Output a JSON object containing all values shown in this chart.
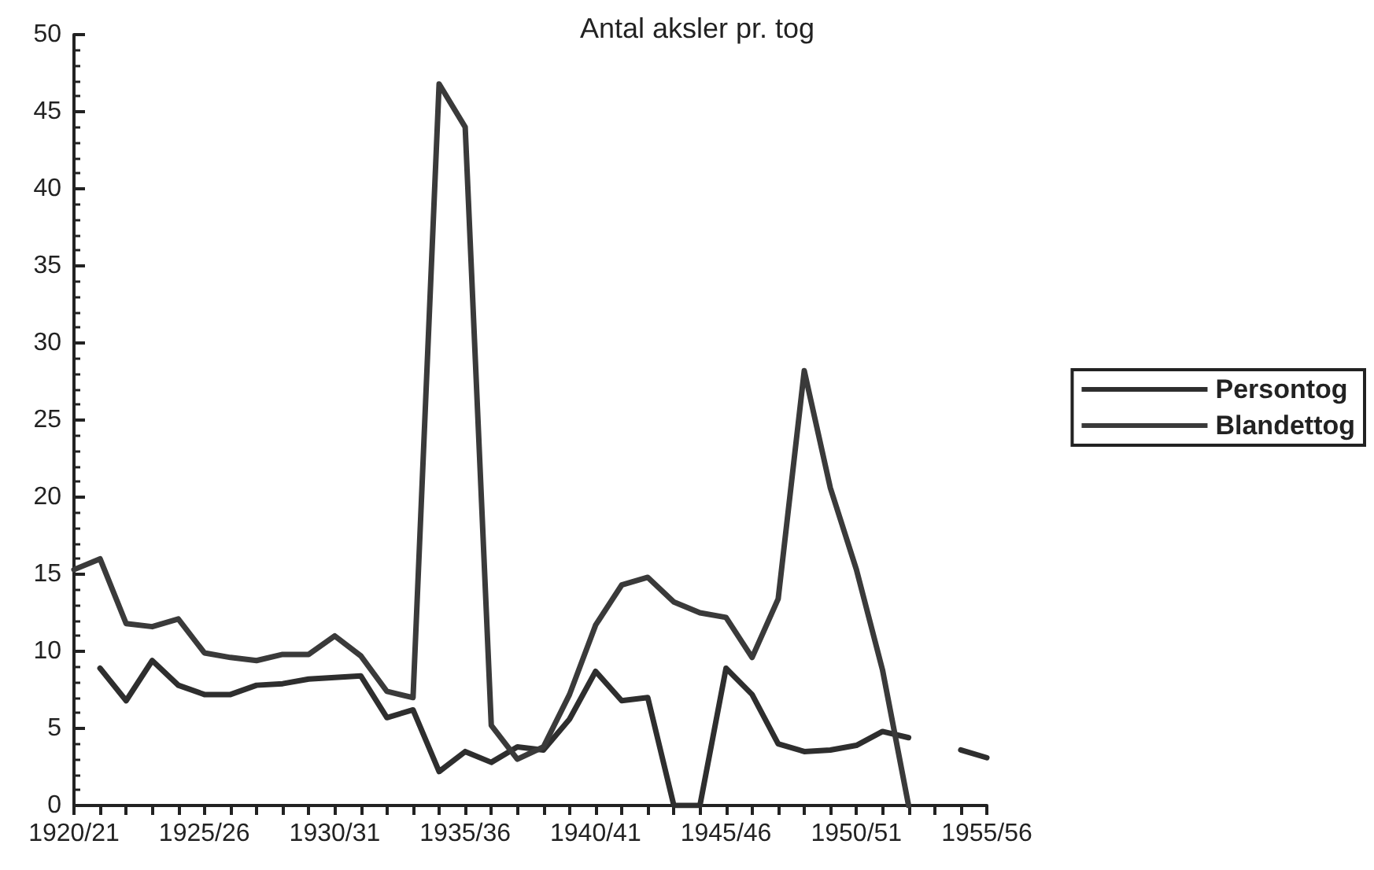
{
  "chart_data": {
    "type": "line",
    "title": "Antal aksler pr. tog",
    "categories": [
      "1920/21",
      null,
      null,
      null,
      null,
      "1925/26",
      null,
      null,
      null,
      null,
      "1930/31",
      null,
      null,
      null,
      null,
      "1935/36",
      null,
      null,
      null,
      null,
      "1940/41",
      null,
      null,
      null,
      null,
      "1945/46",
      null,
      null,
      null,
      null,
      "1950/51",
      null,
      null,
      null,
      null,
      "1955/56"
    ],
    "series": [
      {
        "name": "Persontog",
        "color": "#2e2e2e",
        "values": [
          null,
          8.9,
          6.8,
          9.4,
          7.8,
          7.2,
          7.2,
          7.8,
          7.9,
          8.2,
          8.3,
          8.4,
          5.7,
          6.2,
          2.2,
          3.5,
          2.8,
          3.8,
          3.6,
          5.6,
          8.7,
          6.8,
          7.0,
          0,
          0,
          8.9,
          7.2,
          4.0,
          3.5,
          3.6,
          3.9,
          4.8,
          4.4,
          null,
          3.6,
          3.1
        ]
      },
      {
        "name": "Blandettog",
        "color": "#3a3a3a",
        "values": [
          15.3,
          16.0,
          11.8,
          11.6,
          12.1,
          9.9,
          9.6,
          9.4,
          9.8,
          9.8,
          11.0,
          9.7,
          7.4,
          7.0,
          46.8,
          44.0,
          5.2,
          3.0,
          3.8,
          7.2,
          11.7,
          14.3,
          14.8,
          13.2,
          12.5,
          12.2,
          9.6,
          13.4,
          28.2,
          20.6,
          15.3,
          8.8,
          0,
          null,
          null,
          null
        ]
      }
    ],
    "ylim": [
      0,
      50
    ],
    "yticks": [
      0,
      5,
      10,
      15,
      20,
      25,
      30,
      35,
      40,
      45,
      50
    ],
    "grid": false,
    "legend": "right",
    "marker": "none",
    "line_style": "solid"
  }
}
